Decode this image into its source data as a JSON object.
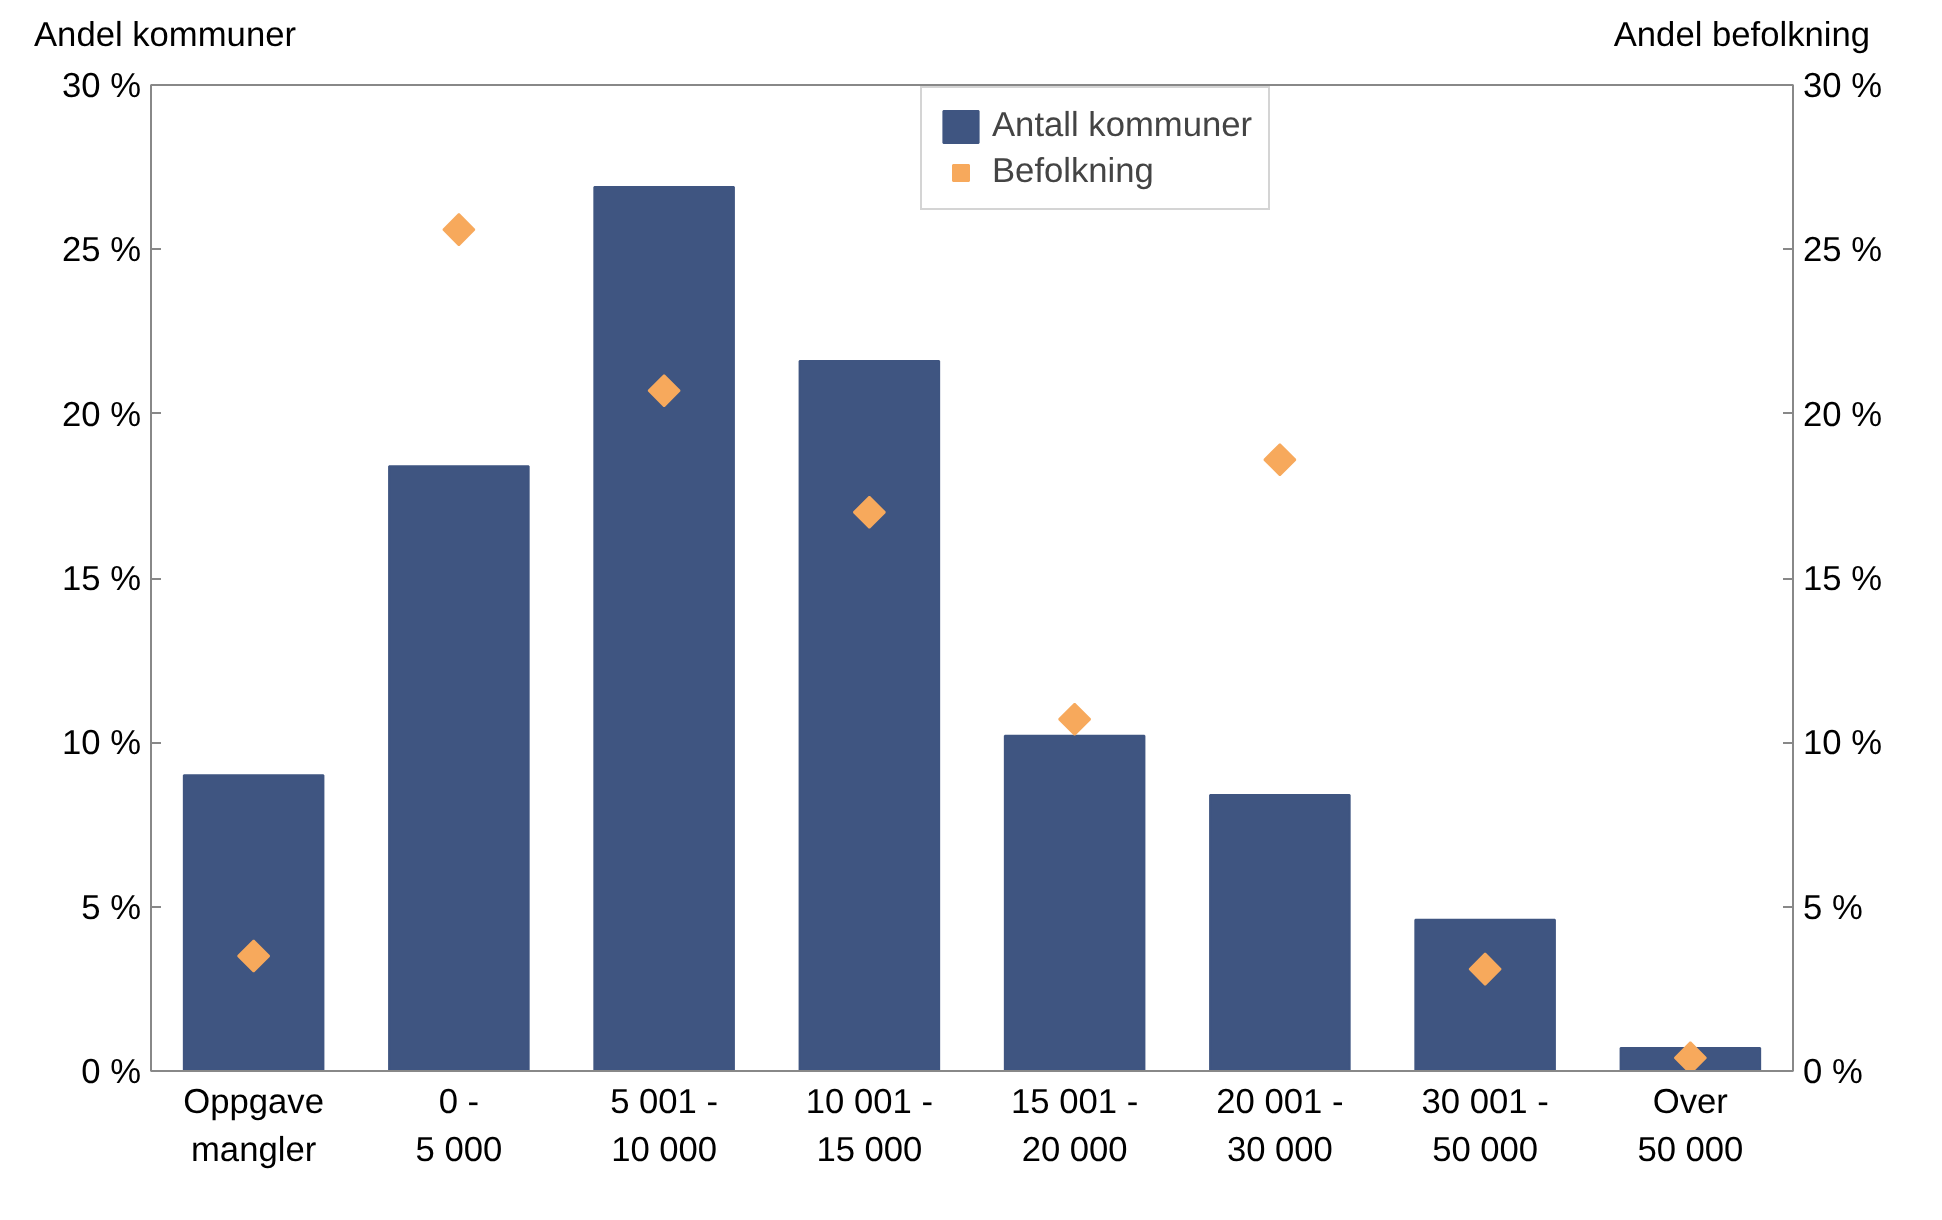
{
  "chart_data": {
    "type": "bar",
    "ylabel": "Andel kommuner",
    "y2label": "Andel befolkning",
    "categories": [
      "Oppgave\nmangler",
      "0 -\n5 000",
      "5 001 -\n10 000",
      "10 001 -\n15 000",
      "15 001 -\n20 000",
      "20 001 -\n30 000",
      "30 001 -\n50 000",
      "Over\n50 000"
    ],
    "series": [
      {
        "name": "Antall kommuner",
        "color": "#3f5581",
        "values": [
          9.0,
          18.4,
          26.9,
          21.6,
          10.2,
          8.4,
          4.6,
          0.7
        ]
      },
      {
        "name": "Befolkning",
        "type": "scatter",
        "axis": "y2",
        "marker": "diamond",
        "color": "#f7a95c",
        "values": [
          3.5,
          25.6,
          20.7,
          17.0,
          10.7,
          18.6,
          3.1,
          0.4
        ]
      }
    ],
    "ylim": [
      0,
      30
    ],
    "yticks": [
      {
        "value": 0,
        "label": "0 %"
      },
      {
        "value": 5,
        "label": "5 %"
      },
      {
        "value": 10,
        "label": "10 %"
      },
      {
        "value": 15,
        "label": "15 %"
      },
      {
        "value": 20,
        "label": "20 %"
      },
      {
        "value": 25,
        "label": "25 %"
      },
      {
        "value": 30,
        "label": "30 %"
      }
    ],
    "y2lim": [
      0,
      30
    ],
    "y2ticks": [
      {
        "value": 0,
        "label": "0 %"
      },
      {
        "value": 5,
        "label": "5 %"
      },
      {
        "value": 10,
        "label": "10 %"
      },
      {
        "value": 15,
        "label": "15 %"
      },
      {
        "value": 20,
        "label": "20 %"
      },
      {
        "value": 25,
        "label": "25 %"
      },
      {
        "value": 30,
        "label": "30 %"
      }
    ],
    "grid": false,
    "legend": "top"
  }
}
